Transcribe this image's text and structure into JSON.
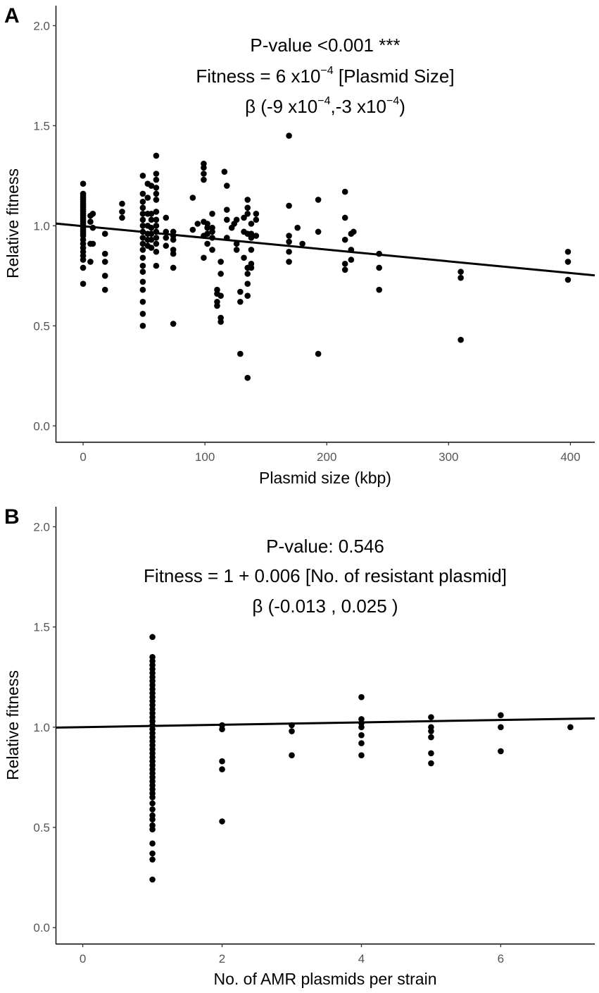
{
  "chart_data": [
    {
      "type": "scatter",
      "panel_label": "A",
      "xlabel": "Plasmid size (kbp)",
      "ylabel": "Relative fitness",
      "xlim": [
        -22,
        420
      ],
      "ylim": [
        -0.08,
        2.1
      ],
      "xticks": [
        0,
        100,
        200,
        300,
        400
      ],
      "xtick_labels": [
        "0",
        "100",
        "200",
        "300",
        "400"
      ],
      "yticks": [
        0.0,
        0.5,
        1.0,
        1.5,
        2.0
      ],
      "ytick_labels": [
        "0.0",
        "0.5",
        "1.0",
        "1.5",
        "2.0"
      ],
      "annotation": {
        "line1": "P-value <0.001 ***",
        "line2": {
          "prefix": "Fitness = 6 x10",
          "exp": "−4",
          "suffix": " [Plasmid Size]"
        },
        "line3": {
          "p1": "β (-9 x10",
          "e1": "−4",
          "p2": ",-3 x10",
          "e2": "−4",
          "p3": ")"
        }
      },
      "fit_line": {
        "x": [
          -22,
          420
        ],
        "y": [
          1.011,
          0.752
        ]
      },
      "points": [
        [
          0,
          1.21
        ],
        [
          0,
          1.16
        ],
        [
          0,
          1.15
        ],
        [
          0,
          1.14
        ],
        [
          0,
          1.13
        ],
        [
          0,
          1.12
        ],
        [
          0,
          1.11
        ],
        [
          0,
          1.1
        ],
        [
          0,
          1.09
        ],
        [
          0,
          1.08
        ],
        [
          0,
          1.07
        ],
        [
          0,
          1.06
        ],
        [
          0,
          1.05
        ],
        [
          0,
          1.04
        ],
        [
          0,
          1.03
        ],
        [
          0,
          1.02
        ],
        [
          0,
          1.01
        ],
        [
          0,
          1.0
        ],
        [
          0,
          0.99
        ],
        [
          0,
          0.98
        ],
        [
          0,
          0.97
        ],
        [
          0,
          0.96
        ],
        [
          0,
          0.95
        ],
        [
          0,
          0.93
        ],
        [
          0,
          0.91
        ],
        [
          0,
          0.89
        ],
        [
          0,
          0.87
        ],
        [
          0,
          0.85
        ],
        [
          0,
          0.83
        ],
        [
          0,
          0.79
        ],
        [
          0,
          0.71
        ],
        [
          6,
          1.05
        ],
        [
          6,
          1.02
        ],
        [
          6,
          0.91
        ],
        [
          6,
          0.82
        ],
        [
          8,
          1.06
        ],
        [
          8,
          0.99
        ],
        [
          8,
          0.91
        ],
        [
          18,
          0.96
        ],
        [
          18,
          0.86
        ],
        [
          18,
          0.82
        ],
        [
          18,
          0.75
        ],
        [
          18,
          0.68
        ],
        [
          32,
          1.11
        ],
        [
          32,
          1.07
        ],
        [
          32,
          1.04
        ],
        [
          49,
          1.25
        ],
        [
          49,
          1.16
        ],
        [
          49,
          1.12
        ],
        [
          49,
          1.09
        ],
        [
          49,
          1.06
        ],
        [
          49,
          1.03
        ],
        [
          49,
          1.0
        ],
        [
          49,
          0.97
        ],
        [
          49,
          0.94
        ],
        [
          49,
          0.91
        ],
        [
          49,
          0.88
        ],
        [
          49,
          0.84
        ],
        [
          49,
          0.8
        ],
        [
          49,
          0.77
        ],
        [
          49,
          0.72
        ],
        [
          49,
          0.68
        ],
        [
          49,
          0.62
        ],
        [
          49,
          0.56
        ],
        [
          49,
          0.5
        ],
        [
          53,
          1.21
        ],
        [
          53,
          1.14
        ],
        [
          53,
          1.06
        ],
        [
          53,
          1.0
        ],
        [
          53,
          0.96
        ],
        [
          53,
          0.93
        ],
        [
          53,
          0.9
        ],
        [
          56,
          1.2
        ],
        [
          56,
          1.06
        ],
        [
          56,
          1.03
        ],
        [
          56,
          0.99
        ],
        [
          56,
          0.96
        ],
        [
          56,
          0.93
        ],
        [
          56,
          0.89
        ],
        [
          60,
          1.35
        ],
        [
          60,
          1.26
        ],
        [
          60,
          1.23
        ],
        [
          60,
          1.19
        ],
        [
          60,
          1.16
        ],
        [
          60,
          1.13
        ],
        [
          60,
          1.07
        ],
        [
          60,
          1.03
        ],
        [
          60,
          1.0
        ],
        [
          60,
          0.97
        ],
        [
          60,
          0.94
        ],
        [
          60,
          0.91
        ],
        [
          60,
          0.87
        ],
        [
          60,
          0.8
        ],
        [
          68,
          1.04
        ],
        [
          68,
          0.97
        ],
        [
          68,
          0.94
        ],
        [
          68,
          0.9
        ],
        [
          74,
          0.97
        ],
        [
          74,
          0.95
        ],
        [
          74,
          0.93
        ],
        [
          74,
          0.88
        ],
        [
          74,
          0.86
        ],
        [
          74,
          0.79
        ],
        [
          74,
          0.51
        ],
        [
          90,
          1.14
        ],
        [
          90,
          0.98
        ],
        [
          94,
          1.01
        ],
        [
          99,
          1.31
        ],
        [
          99,
          1.29
        ],
        [
          99,
          1.26
        ],
        [
          99,
          1.23
        ],
        [
          99,
          1.02
        ],
        [
          99,
          0.95
        ],
        [
          99,
          0.84
        ],
        [
          102,
          1.01
        ],
        [
          102,
          0.99
        ],
        [
          102,
          0.96
        ],
        [
          102,
          0.91
        ],
        [
          106,
          1.06
        ],
        [
          106,
          0.99
        ],
        [
          106,
          0.97
        ],
        [
          106,
          0.94
        ],
        [
          106,
          0.88
        ],
        [
          110,
          0.68
        ],
        [
          110,
          0.66
        ],
        [
          110,
          0.62
        ],
        [
          110,
          0.6
        ],
        [
          113,
          0.82
        ],
        [
          113,
          0.76
        ],
        [
          113,
          0.54
        ],
        [
          113,
          0.52
        ],
        [
          113,
          0.65
        ],
        [
          116,
          1.27
        ],
        [
          118,
          1.2
        ],
        [
          118,
          1.08
        ],
        [
          118,
          1.03
        ],
        [
          118,
          0.94
        ],
        [
          122,
          0.99
        ],
        [
          124,
          1.01
        ],
        [
          126,
          1.03
        ],
        [
          126,
          0.91
        ],
        [
          126,
          0.88
        ],
        [
          129,
          0.67
        ],
        [
          129,
          0.62
        ],
        [
          129,
          0.36
        ],
        [
          132,
          1.04
        ],
        [
          132,
          0.97
        ],
        [
          132,
          0.84
        ],
        [
          135,
          1.13
        ],
        [
          135,
          1.09
        ],
        [
          135,
          1.06
        ],
        [
          135,
          0.96
        ],
        [
          135,
          0.79
        ],
        [
          135,
          0.76
        ],
        [
          135,
          0.71
        ],
        [
          135,
          0.65
        ],
        [
          135,
          0.24
        ],
        [
          138,
          1.01
        ],
        [
          138,
          0.96
        ],
        [
          138,
          0.94
        ],
        [
          138,
          0.88
        ],
        [
          138,
          0.81
        ],
        [
          138,
          0.79
        ],
        [
          142,
          1.06
        ],
        [
          142,
          1.03
        ],
        [
          142,
          0.95
        ],
        [
          169,
          1.45
        ],
        [
          169,
          1.1
        ],
        [
          169,
          0.95
        ],
        [
          169,
          0.92
        ],
        [
          169,
          0.87
        ],
        [
          169,
          0.82
        ],
        [
          176,
          0.99
        ],
        [
          180,
          0.91
        ],
        [
          193,
          1.13
        ],
        [
          193,
          0.97
        ],
        [
          193,
          0.36
        ],
        [
          215,
          1.17
        ],
        [
          215,
          1.04
        ],
        [
          215,
          0.93
        ],
        [
          215,
          0.81
        ],
        [
          215,
          0.78
        ],
        [
          220,
          0.96
        ],
        [
          220,
          0.88
        ],
        [
          220,
          0.83
        ],
        [
          222,
          0.97
        ],
        [
          243,
          0.86
        ],
        [
          243,
          0.79
        ],
        [
          243,
          0.68
        ],
        [
          310,
          0.77
        ],
        [
          310,
          0.74
        ],
        [
          310,
          0.43
        ],
        [
          398,
          0.87
        ],
        [
          398,
          0.82
        ],
        [
          398,
          0.73
        ]
      ]
    },
    {
      "type": "scatter",
      "panel_label": "B",
      "xlabel": "No. of AMR plasmids per strain",
      "ylabel": "Relative fitness",
      "xlim": [
        -0.38,
        7.35
      ],
      "ylim": [
        -0.08,
        2.1
      ],
      "xticks": [
        0,
        2,
        4,
        6
      ],
      "xtick_labels": [
        "0",
        "2",
        "4",
        "6"
      ],
      "yticks": [
        0.0,
        0.5,
        1.0,
        1.5,
        2.0
      ],
      "ytick_labels": [
        "0.0",
        "0.5",
        "1.0",
        "1.5",
        "2.0"
      ],
      "annotation": {
        "line1": "P-value: 0.546",
        "line2": "Fitness = 1 + 0.006 [No. of resistant plasmid]",
        "line3": "β (-0.013 , 0.025 )"
      },
      "fit_line": {
        "x": [
          -0.38,
          7.35
        ],
        "y": [
          0.998,
          1.044
        ]
      },
      "points": [
        [
          1,
          1.45
        ],
        [
          1,
          1.35
        ],
        [
          1,
          1.33
        ],
        [
          1,
          1.31
        ],
        [
          1,
          1.29
        ],
        [
          1,
          1.27
        ],
        [
          1,
          1.25
        ],
        [
          1,
          1.23
        ],
        [
          1,
          1.21
        ],
        [
          1,
          1.19
        ],
        [
          1,
          1.17
        ],
        [
          1,
          1.15
        ],
        [
          1,
          1.13
        ],
        [
          1,
          1.11
        ],
        [
          1,
          1.09
        ],
        [
          1,
          1.07
        ],
        [
          1,
          1.05
        ],
        [
          1,
          1.03
        ],
        [
          1,
          1.01
        ],
        [
          1,
          0.99
        ],
        [
          1,
          0.97
        ],
        [
          1,
          0.95
        ],
        [
          1,
          0.93
        ],
        [
          1,
          0.91
        ],
        [
          1,
          0.89
        ],
        [
          1,
          0.87
        ],
        [
          1,
          0.85
        ],
        [
          1,
          0.83
        ],
        [
          1,
          0.81
        ],
        [
          1,
          0.79
        ],
        [
          1,
          0.77
        ],
        [
          1,
          0.75
        ],
        [
          1,
          0.73
        ],
        [
          1,
          0.71
        ],
        [
          1,
          0.69
        ],
        [
          1,
          0.67
        ],
        [
          1,
          0.65
        ],
        [
          1,
          0.62
        ],
        [
          1,
          0.59
        ],
        [
          1,
          0.56
        ],
        [
          1,
          0.54
        ],
        [
          1,
          0.51
        ],
        [
          1,
          0.49
        ],
        [
          1,
          0.42
        ],
        [
          1,
          0.37
        ],
        [
          1,
          0.34
        ],
        [
          1,
          0.24
        ],
        [
          2,
          1.01
        ],
        [
          2,
          0.99
        ],
        [
          2,
          0.83
        ],
        [
          2,
          0.79
        ],
        [
          2,
          0.53
        ],
        [
          3,
          1.01
        ],
        [
          3,
          0.98
        ],
        [
          3,
          0.86
        ],
        [
          4,
          1.15
        ],
        [
          4,
          1.04
        ],
        [
          4,
          1.02
        ],
        [
          4,
          1.0
        ],
        [
          4,
          0.96
        ],
        [
          4,
          0.92
        ],
        [
          4,
          0.86
        ],
        [
          5,
          1.05
        ],
        [
          5,
          1.0
        ],
        [
          5,
          0.98
        ],
        [
          5,
          0.95
        ],
        [
          5,
          0.87
        ],
        [
          5,
          0.82
        ],
        [
          6,
          1.06
        ],
        [
          6,
          1.0
        ],
        [
          6,
          0.88
        ],
        [
          7,
          1.0
        ]
      ]
    }
  ]
}
